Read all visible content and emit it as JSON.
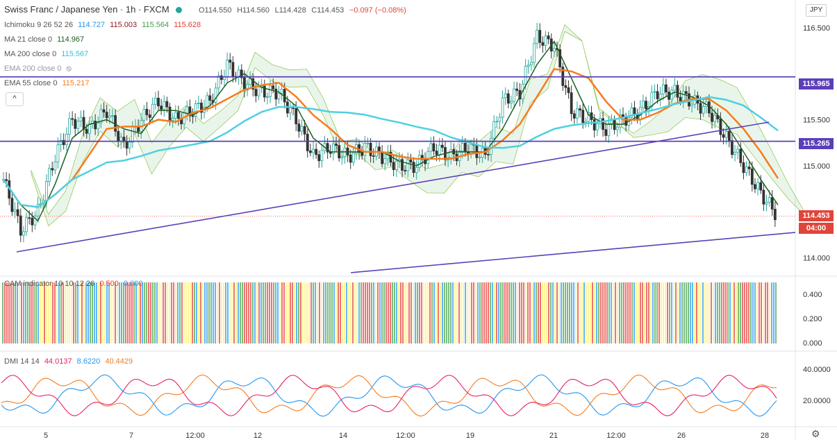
{
  "header": {
    "symbol": "Swiss Franc / Japanese Yen · 1h · FXCM",
    "open": "O114.550",
    "high": "H114.560",
    "low": "L114.428",
    "close": "C114.453",
    "change": "−0.097 (−0.08%)"
  },
  "indicators": {
    "ichimoku": {
      "label": "Ichimoku 9 26 52 26",
      "v1": "114.727",
      "v2": "115.003",
      "v3": "115.564",
      "v4": "115.628"
    },
    "ma21": {
      "label": "MA 21 close 0",
      "value": "114.967"
    },
    "ma200": {
      "label": "MA 200 close 0",
      "value": "115.567"
    },
    "ema200": {
      "label": "EMA 200 close 0"
    },
    "ema55": {
      "label": "EMA 55 close 0",
      "value": "115.217"
    },
    "cam": {
      "label": "CAM indicator 10 10 12 26",
      "v1": "0.500",
      "v2": "0.000"
    },
    "dmi": {
      "label": "DMI 14 14",
      "v1": "44.0137",
      "v2": "8.6220",
      "v3": "40.4429"
    }
  },
  "currency_badge": "JPY",
  "collapse_symbol": "^",
  "price_axis": {
    "ticks": [
      "116.500",
      "115.500",
      "115.000",
      "114.000"
    ],
    "tags": {
      "upper_line": "115.965",
      "lower_line": "115.265",
      "last": "114.453",
      "countdown": "04:00"
    }
  },
  "cam_axis": [
    "0.400",
    "0.200",
    "0.000"
  ],
  "dmi_axis": [
    "40.0000",
    "20.0000"
  ],
  "time_axis": [
    "5",
    "7",
    "12:00",
    "12",
    "14",
    "12:00",
    "19",
    "21",
    "12:00",
    "26",
    "28"
  ],
  "colors": {
    "up": "#26a69a",
    "down": "#e0453a",
    "hline": "#5b3fb8",
    "ema55": "#f57c1f",
    "ma200": "#4dd0e1",
    "ma21": "#1b5e20",
    "dmi_plus": "#2196f3",
    "dmi_minus": "#f57c1f",
    "adx": "#e91e63"
  },
  "chart_data": {
    "type": "candlestick",
    "ylim": [
      113.8,
      116.8
    ],
    "levels": [
      115.965,
      115.265
    ],
    "last_price": 114.453,
    "close_series": [
      114.85,
      114.3,
      114.5,
      115.1,
      115.5,
      115.4,
      115.6,
      115.2,
      115.5,
      115.7,
      115.5,
      115.6,
      115.7,
      116.1,
      115.9,
      115.8,
      115.8,
      115.5,
      115.1,
      115.2,
      115.1,
      115.2,
      115.1,
      115.0,
      115.0,
      115.2,
      115.1,
      115.2,
      115.1,
      115.7,
      115.8,
      116.4,
      116.3,
      115.6,
      115.5,
      115.4,
      115.5,
      115.6,
      115.8,
      115.8,
      115.7,
      115.6,
      115.3,
      115.0,
      114.7,
      114.45
    ]
  }
}
